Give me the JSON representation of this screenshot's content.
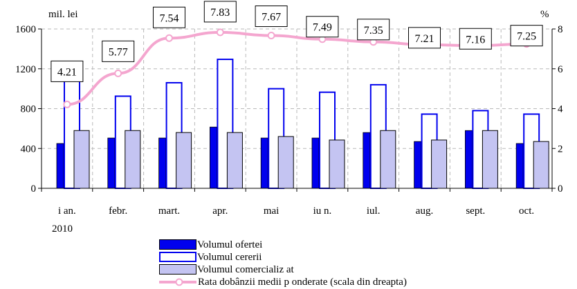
{
  "chart_data": {
    "type": "bar",
    "left_axis_unit": "mil. lei",
    "right_axis_unit": "%",
    "categories": [
      "i an.",
      "febr.",
      "mart.",
      "apr.",
      "mai",
      "iu n.",
      "iul.",
      "aug.",
      "sept.",
      "oct."
    ],
    "year_label": "2010",
    "left_axis": {
      "ylim": [
        0,
        1600
      ],
      "ticks": [
        "0",
        "400",
        "800",
        "1200",
        "1600"
      ]
    },
    "right_axis": {
      "ylim": [
        0,
        8
      ],
      "ticks": [
        "0",
        "2",
        "4",
        "6",
        "8"
      ]
    },
    "series": [
      {
        "name": "Volumul ofertei",
        "axis": "left",
        "color": "#0000ee",
        "values": [
          450,
          505,
          505,
          615,
          505,
          505,
          560,
          470,
          580,
          450
        ]
      },
      {
        "name": "Volumul cererii",
        "axis": "left",
        "color": "#ffffff",
        "values": [
          1260,
          925,
          1060,
          1295,
          1000,
          965,
          1040,
          745,
          780,
          745
        ]
      },
      {
        "name": "Volumul comercializ at",
        "axis": "left",
        "color": "#c4c4f2",
        "values": [
          580,
          580,
          560,
          560,
          520,
          485,
          580,
          485,
          580,
          470
        ]
      },
      {
        "name": "Rata dobânzii medii p onderate (scala din dreapta)",
        "axis": "right",
        "type": "line",
        "color": "#f4a6cf",
        "values": [
          4.21,
          5.77,
          7.54,
          7.83,
          7.67,
          7.49,
          7.35,
          7.21,
          7.16,
          7.25
        ],
        "data_labels": [
          "4.21",
          "5.77",
          "7.54",
          "7.83",
          "7.67",
          "7.49",
          "7.35",
          "7.21",
          "7.16",
          "7.25"
        ]
      }
    ],
    "grid": true,
    "legend_position": "bottom"
  },
  "legend": {
    "items": [
      {
        "label": "Volumul ofertei"
      },
      {
        "label": "Volumul cererii"
      },
      {
        "label": "Volumul comercializ at"
      },
      {
        "label": "Rata dobânzii medii p onderate (scala din dreapta)"
      }
    ]
  }
}
